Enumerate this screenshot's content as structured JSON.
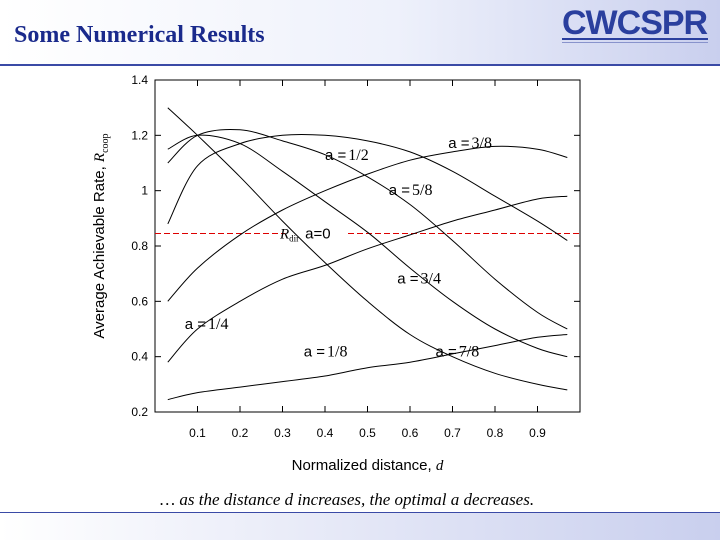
{
  "slide": {
    "title": "Some Numerical Results",
    "caption": "… as the distance d increases, the optimal a decreases.",
    "logo_text": "CWCSPR"
  },
  "colors": {
    "title": "#1a2a8c",
    "curve": "#000000",
    "reference": "#dd0000",
    "header_rule": "#3a4aa6"
  },
  "chart_data": {
    "type": "line",
    "xlabel": "Normalized distance, d",
    "ylabel": "Average Achievable Rate, R",
    "ylabel_sub": "coop",
    "xlim": [
      0.0,
      1.0
    ],
    "ylim": [
      0.2,
      1.4
    ],
    "xticks": [
      "0.1",
      "0.2",
      "0.3",
      "0.4",
      "0.5",
      "0.6",
      "0.7",
      "0.8",
      "0.9"
    ],
    "yticks": [
      "0.2",
      "0.4",
      "0.6",
      "0.8",
      "1",
      "1.2",
      "1.4"
    ],
    "grid": false,
    "reference": {
      "label_main": "R",
      "label_sub": "dir",
      "label_tail": "a=0",
      "y": 0.845
    },
    "series": [
      {
        "name": "a =1/8",
        "x": [
          0.03,
          0.1,
          0.2,
          0.3,
          0.4,
          0.5,
          0.6,
          0.7,
          0.8,
          0.9,
          0.97
        ],
        "y": [
          0.245,
          0.27,
          0.29,
          0.31,
          0.33,
          0.36,
          0.38,
          0.41,
          0.44,
          0.47,
          0.48
        ]
      },
      {
        "name": "a =1/4",
        "x": [
          0.03,
          0.1,
          0.2,
          0.3,
          0.4,
          0.5,
          0.6,
          0.7,
          0.8,
          0.9,
          0.97
        ],
        "y": [
          0.38,
          0.5,
          0.6,
          0.68,
          0.73,
          0.79,
          0.84,
          0.89,
          0.93,
          0.97,
          0.98
        ]
      },
      {
        "name": "a =3/8",
        "x": [
          0.03,
          0.1,
          0.2,
          0.3,
          0.4,
          0.5,
          0.6,
          0.7,
          0.8,
          0.9,
          0.97
        ],
        "y": [
          0.6,
          0.72,
          0.84,
          0.93,
          1.0,
          1.06,
          1.11,
          1.14,
          1.16,
          1.15,
          1.12
        ]
      },
      {
        "name": "a =1/2",
        "x": [
          0.03,
          0.1,
          0.2,
          0.3,
          0.4,
          0.5,
          0.6,
          0.7,
          0.8,
          0.9,
          0.97
        ],
        "y": [
          0.88,
          1.09,
          1.17,
          1.2,
          1.2,
          1.18,
          1.14,
          1.07,
          0.98,
          0.89,
          0.82
        ]
      },
      {
        "name": "a =5/8",
        "x": [
          0.03,
          0.1,
          0.2,
          0.3,
          0.4,
          0.5,
          0.6,
          0.7,
          0.8,
          0.9,
          0.97
        ],
        "y": [
          1.1,
          1.2,
          1.22,
          1.18,
          1.13,
          1.05,
          0.95,
          0.82,
          0.68,
          0.56,
          0.5
        ]
      },
      {
        "name": "a =3/4",
        "x": [
          0.03,
          0.1,
          0.2,
          0.3,
          0.4,
          0.5,
          0.6,
          0.7,
          0.8,
          0.9,
          0.97
        ],
        "y": [
          1.15,
          1.2,
          1.17,
          1.07,
          0.96,
          0.85,
          0.72,
          0.6,
          0.5,
          0.43,
          0.4
        ]
      },
      {
        "name": "a =7/8",
        "x": [
          0.03,
          0.1,
          0.2,
          0.3,
          0.4,
          0.5,
          0.6,
          0.7,
          0.8,
          0.9,
          0.97
        ],
        "y": [
          1.3,
          1.2,
          1.05,
          0.89,
          0.74,
          0.6,
          0.48,
          0.4,
          0.34,
          0.3,
          0.28
        ]
      }
    ],
    "labels": [
      {
        "series": "a =1/8",
        "text": "a =",
        "frac": "1/8",
        "x": 0.35,
        "y": 0.4
      },
      {
        "series": "a =1/4",
        "text": "a =",
        "frac": "1/4",
        "x": 0.07,
        "y": 0.5
      },
      {
        "series": "a =3/8",
        "text": "a =",
        "frac": "3/8",
        "x": 0.69,
        "y": 1.155
      },
      {
        "series": "a =1/2",
        "text": "a =",
        "frac": "1/2",
        "x": 0.4,
        "y": 1.11
      },
      {
        "series": "a =5/8",
        "text": "a =",
        "frac": "5/8",
        "x": 0.55,
        "y": 0.985
      },
      {
        "series": "a =3/4",
        "text": "a =",
        "frac": "3/4",
        "x": 0.57,
        "y": 0.665
      },
      {
        "series": "a =7/8",
        "text": "a =",
        "frac": "7/8",
        "x": 0.66,
        "y": 0.4
      }
    ]
  }
}
